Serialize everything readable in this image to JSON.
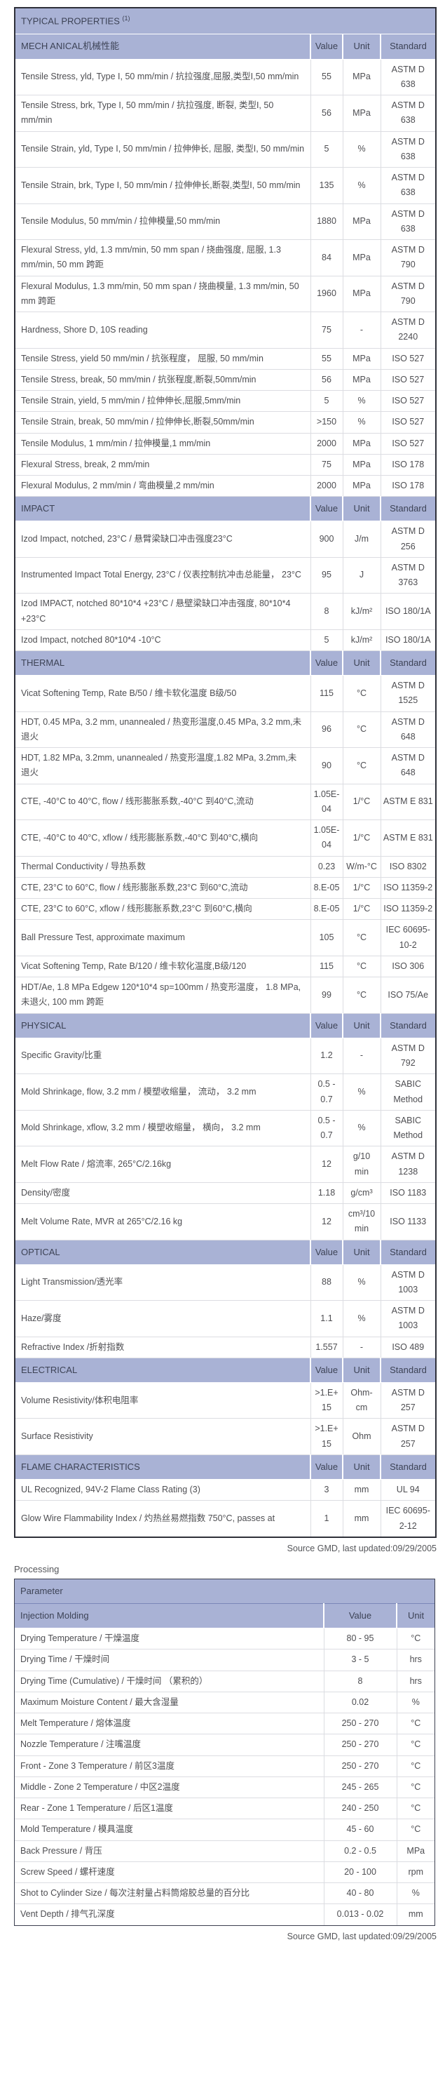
{
  "colors": {
    "header_bg": "#a9b2d5",
    "header_text": "#3d4356",
    "body_text": "#4e4e52",
    "outer_border": "#2e3039",
    "grid_border": "#dcdde2",
    "header_divider": "#ffffff"
  },
  "table1": {
    "title": "TYPICAL PROPERTIES ",
    "title_superscript": "(1)",
    "columns": [
      "Value",
      "Unit",
      "Standard"
    ],
    "sections": [
      {
        "label": "MECH ANICAL机械性能",
        "rows": [
          [
            "Tensile Stress, yld, Type I, 50 mm/min / 抗拉强度,屈服,类型I,50 mm/min",
            "55",
            "MPa",
            "ASTM D 638"
          ],
          [
            "Tensile Stress, brk, Type I, 50 mm/min / 抗拉强度, 断裂, 类型I, 50 mm/min",
            "56",
            "MPa",
            "ASTM D 638"
          ],
          [
            "Tensile Strain, yld, Type I, 50 mm/min / 拉伸伸长, 屈服, 类型I, 50 mm/min",
            "5",
            "%",
            "ASTM D 638"
          ],
          [
            "Tensile Strain, brk, Type I, 50 mm/min / 拉伸伸长,断裂,类型I, 50 mm/min",
            "135",
            "%",
            "ASTM D 638"
          ],
          [
            "Tensile Modulus, 50 mm/min / 拉伸模量,50 mm/min",
            "1880",
            "MPa",
            "ASTM D 638"
          ],
          [
            "Flexural Stress, yld, 1.3 mm/min, 50 mm span / 挠曲强度, 屈服, 1.3 mm/min, 50 mm 跨距",
            "84",
            "MPa",
            "ASTM D 790"
          ],
          [
            "Flexural Modulus, 1.3 mm/min, 50 mm span / 挠曲模量, 1.3 mm/min, 50 mm 跨距",
            "1960",
            "MPa",
            "ASTM D 790"
          ],
          [
            "Hardness, Shore D, 10S reading",
            "75",
            "-",
            "ASTM D 2240"
          ],
          [
            "Tensile Stress, yield 50 mm/min / 抗张程度， 屈服, 50 mm/min",
            "55",
            "MPa",
            "ISO 527"
          ],
          [
            "Tensile Stress, break, 50 mm/min / 抗张程度,断裂,50mm/min",
            "56",
            "MPa",
            "ISO 527"
          ],
          [
            "Tensile Strain, yield, 5 mm/min / 拉伸伸长,屈服,5mm/min",
            "5",
            "%",
            "ISO 527"
          ],
          [
            "Tensile Strain, break, 50 mm/min / 拉伸伸长,断裂,50mm/min",
            ">150",
            "%",
            "ISO 527"
          ],
          [
            "Tensile Modulus, 1 mm/min / 拉伸模量,1 mm/min",
            "2000",
            "MPa",
            "ISO 527"
          ],
          [
            "Flexural Stress, break, 2 mm/min",
            "75",
            "MPa",
            "ISO 178"
          ],
          [
            "Flexural Modulus, 2 mm/min / 弯曲模量,2 mm/min",
            "2000",
            "MPa",
            "ISO 178"
          ]
        ]
      },
      {
        "label": "IMPACT",
        "rows": [
          [
            "Izod Impact, notched, 23°C / 悬臂梁缺口冲击强度23°C",
            "900",
            "J/m",
            "ASTM D 256"
          ],
          [
            "Instrumented Impact Total Energy, 23°C / 仪表控制抗冲击总能量， 23°C",
            "95",
            "J",
            "ASTM D 3763"
          ],
          [
            "Izod IMPACT, notched 80*10*4 +23°C / 悬壁梁缺口冲击强度, 80*10*4 +23°C",
            "8",
            "kJ/m²",
            "ISO 180/1A"
          ],
          [
            "Izod Impact, notched 80*10*4 -10°C",
            "5",
            "kJ/m²",
            "ISO 180/1A"
          ]
        ]
      },
      {
        "label": "THERMAL",
        "rows": [
          [
            "Vicat Softening Temp, Rate B/50 / 维卡软化温度 B级/50",
            "115",
            "°C",
            "ASTM D 1525"
          ],
          [
            "HDT, 0.45 MPa, 3.2 mm, unannealed / 热变形温度,0.45 MPa, 3.2 mm,未退火",
            "96",
            "°C",
            "ASTM D 648"
          ],
          [
            "HDT, 1.82 MPa, 3.2mm, unannealed / 热变形温度,1.82 MPa, 3.2mm,未退火",
            "90",
            "°C",
            "ASTM D 648"
          ],
          [
            "CTE, -40°C to 40°C, flow / 线形膨胀系数,-40°C 到40°C,流动",
            "1.05E-04",
            "1/°C",
            "ASTM E 831"
          ],
          [
            "CTE, -40°C to 40°C, xflow / 线形膨胀系数,-40°C 到40°C,横向",
            "1.05E-04",
            "1/°C",
            "ASTM E 831"
          ],
          [
            "Thermal Conductivity / 导热系数",
            "0.23",
            "W/m-°C",
            "ISO 8302"
          ],
          [
            "CTE, 23°C to 60°C, flow / 线形膨胀系数,23°C 到60°C,流动",
            "8.E-05",
            "1/°C",
            "ISO 11359-2"
          ],
          [
            "CTE, 23°C to 60°C, xflow / 线形膨胀系数,23°C 到60°C,横向",
            "8.E-05",
            "1/°C",
            "ISO 11359-2"
          ],
          [
            "Ball Pressure Test, approximate maximum",
            "105",
            "°C",
            "IEC 60695-10-2"
          ],
          [
            "Vicat Softening Temp, Rate B/120 / 维卡软化温度,B级/120",
            "115",
            "°C",
            "ISO 306"
          ],
          [
            "HDT/Ae, 1.8 MPa Edgew 120*10*4 sp=100mm / 热变形温度， 1.8 MPa, 未退火, 100 mm 跨距",
            "99",
            "°C",
            "ISO 75/Ae"
          ]
        ]
      },
      {
        "label": "PHYSICAL",
        "rows": [
          [
            "Specific Gravity/比重",
            "1.2",
            "-",
            "ASTM D 792"
          ],
          [
            "Mold Shrinkage, flow, 3.2 mm / 模塑收缩量， 流动， 3.2 mm",
            "0.5 - 0.7",
            "%",
            "SABIC Method"
          ],
          [
            "Mold Shrinkage, xflow, 3.2 mm / 模塑收缩量， 横向， 3.2 mm",
            "0.5 - 0.7",
            "%",
            "SABIC Method"
          ],
          [
            "Melt Flow Rate / 熔流率, 265°C/2.16kg",
            "12",
            "g/10 min",
            "ASTM D 1238"
          ],
          [
            "Density/密度",
            "1.18",
            "g/cm³",
            "ISO 1183"
          ],
          [
            "Melt Volume Rate, MVR at 265°C/2.16 kg",
            "12",
            "cm³/10 min",
            "ISO 1133"
          ]
        ]
      },
      {
        "label": "OPTICAL",
        "rows": [
          [
            "Light Transmission/透光率",
            "88",
            "%",
            "ASTM D 1003"
          ],
          [
            "Haze/雾度",
            "1.1",
            "%",
            "ASTM D 1003"
          ],
          [
            "Refractive Index /折射指数",
            "1.557",
            "-",
            "ISO 489"
          ]
        ]
      },
      {
        "label": "ELECTRICAL",
        "rows": [
          [
            "Volume Resistivity/体积电阻率",
            ">1.E+15",
            "Ohm-cm",
            "ASTM D 257"
          ],
          [
            "Surface Resistivity",
            ">1.E+15",
            "Ohm",
            "ASTM D 257"
          ]
        ]
      },
      {
        "label": "FLAME CHARACTERISTICS",
        "rows": [
          [
            "UL Recognized, 94V-2 Flame Class Rating (3)",
            "3",
            "mm",
            "UL 94"
          ],
          [
            "Glow Wire Flammability Index / 灼热丝易燃指数 750°C, passes at",
            "1",
            "mm",
            "IEC 60695-2-12"
          ]
        ]
      }
    ],
    "source_note": "Source GMD, last updated:09/29/2005"
  },
  "processing": {
    "heading": "Processing",
    "param_header": "Parameter",
    "subheader": "Injection Molding",
    "columns": [
      "Value",
      "Unit"
    ],
    "rows": [
      [
        "Drying Temperature / 干燥温度",
        "80 - 95",
        "°C"
      ],
      [
        "Drying Time / 干燥时间",
        "3 - 5",
        "hrs"
      ],
      [
        "Drying Time (Cumulative) / 干燥时间 （累积的）",
        "8",
        "hrs"
      ],
      [
        "Maximum Moisture Content / 最大含湿量",
        "0.02",
        "%"
      ],
      [
        "Melt Temperature / 熔体温度",
        "250 - 270",
        "°C"
      ],
      [
        "Nozzle Temperature / 注嘴温度",
        "250 - 270",
        "°C"
      ],
      [
        "Front - Zone 3 Temperature / 前区3温度",
        "250 - 270",
        "°C"
      ],
      [
        "Middle - Zone 2 Temperature / 中区2温度",
        "245 - 265",
        "°C"
      ],
      [
        "Rear - Zone 1 Temperature / 后区1温度",
        "240 - 250",
        "°C"
      ],
      [
        "Mold Temperature / 模具温度",
        "45 - 60",
        "°C"
      ],
      [
        "Back Pressure / 背压",
        "0.2 - 0.5",
        "MPa"
      ],
      [
        "Screw Speed / 螺杆速度",
        "20 - 100",
        "rpm"
      ],
      [
        "Shot to Cylinder Size / 每次注射量占料筒熔胶总量的百分比",
        "40 - 80",
        "%"
      ],
      [
        "Vent Depth / 排气孔深度",
        "0.013 - 0.02",
        "mm"
      ]
    ],
    "source_note": "Source GMD, last updated:09/29/2005"
  }
}
